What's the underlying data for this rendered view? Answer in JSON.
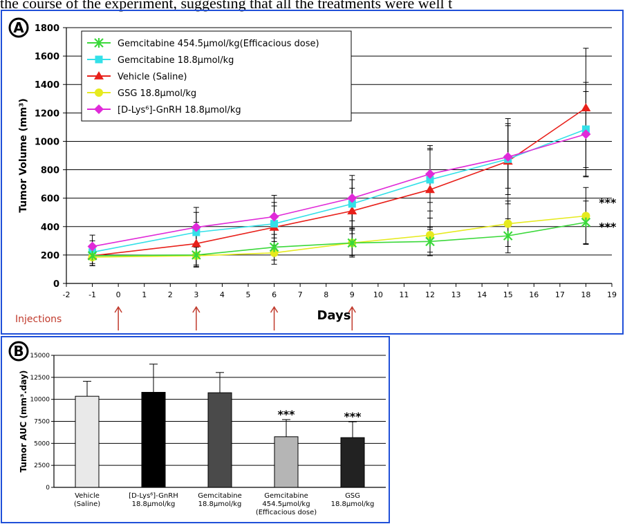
{
  "caption_text": "the course of the experiment, suggesting that all the treatments were well t",
  "chart_data": [
    {
      "panel": "A",
      "type": "line",
      "ylabel": "Tumor Volume (mm³)",
      "xlabel": "Days",
      "xlim": [
        -2,
        19
      ],
      "ylim": [
        0,
        1800
      ],
      "xticks": [
        -2,
        -1,
        0,
        1,
        2,
        3,
        4,
        5,
        6,
        7,
        8,
        9,
        10,
        11,
        12,
        13,
        14,
        15,
        16,
        17,
        18,
        19
      ],
      "yticks": [
        0,
        200,
        400,
        600,
        800,
        1000,
        1200,
        1400,
        1600,
        1800
      ],
      "grid": "horizontal",
      "legend": "top-left",
      "injections_label": "Injections",
      "injection_days": [
        0,
        3,
        6,
        9
      ],
      "x": [
        -1,
        3,
        6,
        9,
        12,
        15,
        18
      ],
      "series": [
        {
          "name": "Vehicle (Saline)",
          "color": "#e8201a",
          "marker": "triangle",
          "values": [
            195,
            280,
            395,
            510,
            660,
            860,
            1235
          ],
          "errors": [
            70,
            150,
            150,
            160,
            280,
            300,
            420
          ]
        },
        {
          "name": "Gemcitabine 18.8μmol/kg",
          "color": "#33e0e8",
          "marker": "square",
          "values": [
            220,
            360,
            420,
            560,
            730,
            875,
            1085
          ],
          "errors": [
            80,
            140,
            150,
            170,
            220,
            250,
            330
          ]
        },
        {
          "name": "[D-Lys⁶]-GnRH 18.8μmol/kg",
          "color": "#e02ad8",
          "marker": "diamond",
          "values": [
            260,
            395,
            470,
            600,
            770,
            890,
            1050
          ],
          "errors": [
            80,
            140,
            150,
            160,
            200,
            220,
            300
          ]
        },
        {
          "name": "GSG 18.8μmol/kg",
          "color": "#e6ea1e",
          "marker": "circle",
          "values": [
            185,
            195,
            215,
            285,
            340,
            420,
            475
          ],
          "errors": [
            60,
            80,
            80,
            90,
            120,
            160,
            200
          ]
        },
        {
          "name": "Gemcitabine 454.5μmol/kg(Efficacious dose)",
          "color": "#3ad83a",
          "marker": "star",
          "values": [
            195,
            200,
            255,
            285,
            295,
            335,
            430
          ],
          "errors": [
            70,
            80,
            90,
            100,
            100,
            120,
            150
          ]
        }
      ],
      "legend_order": [
        4,
        1,
        0,
        3,
        2
      ],
      "annotations": [
        {
          "text": "***",
          "series": 3
        },
        {
          "text": "***",
          "series": 4
        }
      ]
    },
    {
      "panel": "B",
      "type": "bar",
      "ylabel": "Tumor AUC (mm³.day)",
      "ylim": [
        0,
        15000
      ],
      "yticks": [
        0,
        2500,
        5000,
        7500,
        10000,
        12500,
        15000
      ],
      "grid": "horizontal",
      "categories": [
        [
          "Vehicle",
          "(Saline)"
        ],
        [
          "[D-Lys⁶]-GnRH",
          "18.8μmol/kg"
        ],
        [
          "Gemcitabine",
          "18.8μmol/kg"
        ],
        [
          "Gemcitabine",
          "454.5μmol/kg",
          "(Efficacious dose)"
        ],
        [
          "GSG",
          "18.8μmol/kg"
        ]
      ],
      "values": [
        10350,
        10800,
        10750,
        5750,
        5650
      ],
      "errors": [
        1700,
        3200,
        2300,
        1950,
        1800
      ],
      "colors": [
        "#e9e9e9",
        "#000000",
        "#4a4a4a",
        "#b5b5b5",
        "#222222"
      ],
      "annotations": [
        "",
        "",
        "",
        "***",
        "***"
      ]
    }
  ]
}
